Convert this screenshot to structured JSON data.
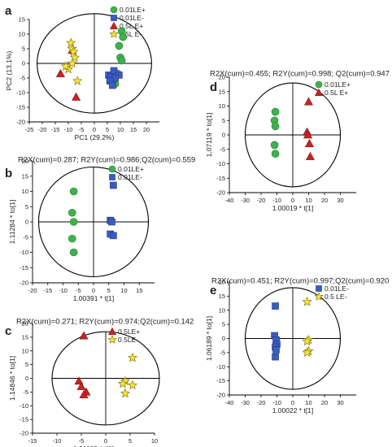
{
  "chart_data": [
    {
      "type": "scatter",
      "panel_letter": "a",
      "title": "",
      "xlabel": "PC1 (29.2%)",
      "ylabel": "PC2 (13.1%)",
      "xlim": [
        -25,
        25
      ],
      "ylim": [
        -20,
        15
      ],
      "xticks": [
        -25,
        -20,
        -15,
        -10,
        -5,
        0,
        5,
        10,
        15,
        20
      ],
      "yticks": [
        -20,
        -15,
        -10,
        -5,
        0,
        5,
        10,
        15
      ],
      "xtick_labels": [
        "-25",
        "-20",
        "-15",
        "-10",
        "-5",
        "0",
        "5",
        "10",
        "15",
        "20"
      ],
      "ytick_labels": [
        "-20",
        "-15",
        "-10",
        "-5",
        "0",
        "5",
        "10",
        "15"
      ],
      "ellipse": {
        "rx": 22,
        "ry": 17
      },
      "legend_position": "top-right",
      "series": [
        {
          "name": "0.01LE+",
          "marker": "circle",
          "color": "#3cb44b",
          "points": [
            [
              10.5,
              11
            ],
            [
              11,
              9
            ],
            [
              9.5,
              6
            ],
            [
              10,
              2
            ],
            [
              10.5,
              1
            ],
            [
              9,
              -3.5
            ],
            [
              8,
              -7
            ]
          ]
        },
        {
          "name": "0.01LE-",
          "marker": "square",
          "color": "#3b5bc4",
          "points": [
            [
              5.5,
              -4
            ],
            [
              6.5,
              -4.5
            ],
            [
              7.5,
              -2.5
            ],
            [
              9.5,
              -4
            ],
            [
              8,
              -5
            ],
            [
              6,
              -6
            ],
            [
              7,
              -7.5
            ]
          ]
        },
        {
          "name": "0.5L E+",
          "marker": "triangle",
          "color": "#cc2222",
          "points": [
            [
              -8.5,
              4.5
            ],
            [
              -13,
              -3.5
            ],
            [
              -7,
              -11.5
            ]
          ]
        },
        {
          "name": "0.5L E-",
          "marker": "star",
          "color": "#f5e43a",
          "points": [
            [
              -9,
              7
            ],
            [
              -8.5,
              5
            ],
            [
              -8,
              4
            ],
            [
              -7.5,
              2
            ],
            [
              -8.5,
              0
            ],
            [
              -10,
              -2
            ],
            [
              -11,
              -1
            ],
            [
              -6.5,
              -6
            ]
          ]
        }
      ]
    },
    {
      "type": "scatter",
      "panel_letter": "b",
      "title": "R2X(cum)=0.287; R2Y(cum)=0.986;Q2(cum)=0.559",
      "xlabel": "1.00391 * t[1]",
      "ylabel": "1.11284 * to[1]",
      "xlim": [
        -20,
        20
      ],
      "ylim": [
        -20,
        20
      ],
      "xticks": [
        -20,
        -15,
        -10,
        -5,
        0,
        5,
        10,
        15
      ],
      "yticks": [
        -20,
        -15,
        -10,
        -5,
        0,
        5,
        10,
        15,
        20
      ],
      "xtick_labels": [
        "-20",
        "-15",
        "-10",
        "-5",
        "0",
        "5",
        "10",
        "15"
      ],
      "ytick_labels": [
        "-20",
        "-15",
        "-10",
        "-5",
        "0",
        "5",
        "10",
        "15",
        "20"
      ],
      "ellipse": {
        "rx": 18,
        "ry": 18
      },
      "legend_position": "top-right",
      "series": [
        {
          "name": "0.01LE+",
          "marker": "circle",
          "color": "#3cb44b",
          "points": [
            [
              -6.5,
              10
            ],
            [
              -7,
              3
            ],
            [
              -6.5,
              0
            ],
            [
              -7,
              -5.5
            ],
            [
              -6.5,
              -10
            ]
          ]
        },
        {
          "name": "0.01LE-",
          "marker": "square",
          "color": "#3b5bc4",
          "points": [
            [
              6.5,
              12
            ],
            [
              5.5,
              0.5
            ],
            [
              6,
              0
            ],
            [
              5.5,
              -4
            ],
            [
              6.5,
              -4.5
            ]
          ]
        }
      ]
    },
    {
      "type": "scatter",
      "panel_letter": "c",
      "title": "R2X(cum)=0.271; R2Y(cum)=0.974;Q2(cum)=0.142",
      "xlabel": "1.01189 * t[1]",
      "ylabel": "1.14846 * to[1]",
      "xlim": [
        -15,
        10
      ],
      "ylim": [
        -20,
        20
      ],
      "xticks": [
        -15,
        -10,
        -5,
        0,
        5,
        10
      ],
      "yticks": [
        -20,
        -15,
        -10,
        -5,
        0,
        5,
        10,
        15,
        20
      ],
      "xtick_labels": [
        "-15",
        "-10",
        "-5",
        "0",
        "5",
        "10"
      ],
      "ytick_labels": [
        "-20",
        "-15",
        "-10",
        "-5",
        "0",
        "5",
        "10",
        "15",
        "20"
      ],
      "ellipse": {
        "rx": 11,
        "ry": 17
      },
      "legend_position": "top-right",
      "series": [
        {
          "name": "0.5LE+",
          "marker": "triangle",
          "color": "#cc2222",
          "points": [
            [
              -4.5,
              15.5
            ],
            [
              -5.5,
              -1
            ],
            [
              -5,
              -3
            ],
            [
              -4,
              -5
            ],
            [
              -4.5,
              -6
            ]
          ]
        },
        {
          "name": "0.5LE-",
          "marker": "star",
          "color": "#f5e43a",
          "points": [
            [
              5.5,
              7.5
            ],
            [
              4,
              -1
            ],
            [
              3.5,
              -2
            ],
            [
              5.5,
              -2.5
            ],
            [
              4,
              -5.5
            ]
          ]
        }
      ]
    },
    {
      "type": "scatter",
      "panel_letter": "d",
      "title": "R2X(cum)=0.455; R2Y(cum)=0.998; Q2(cum)=0.947",
      "xlabel": "1.00019 * t[1]",
      "ylabel": "1.07119 * to[1]",
      "xlim": [
        -40,
        40
      ],
      "ylim": [
        -20,
        20
      ],
      "xticks": [
        -40,
        -30,
        -20,
        -10,
        0,
        10,
        20,
        30
      ],
      "yticks": [
        -20,
        -15,
        -10,
        -5,
        0,
        5,
        10,
        15,
        20
      ],
      "xtick_labels": [
        "-40",
        "-30",
        "-20",
        "-10",
        "0",
        "10",
        "20",
        "30"
      ],
      "ytick_labels": [
        "-20",
        "-15",
        "-10",
        "-5",
        "0",
        "5",
        "10",
        "15",
        "20"
      ],
      "ellipse": {
        "rx": 30,
        "ry": 18
      },
      "legend_position": "top-right",
      "series": [
        {
          "name": "0.01LE+",
          "marker": "circle",
          "color": "#3cb44b",
          "points": [
            [
              -11,
              8
            ],
            [
              -11.5,
              5
            ],
            [
              -11,
              3
            ],
            [
              -11.5,
              -3.5
            ],
            [
              -11,
              -6.5
            ]
          ]
        },
        {
          "name": "0.5L E+",
          "marker": "triangle",
          "color": "#cc2222",
          "points": [
            [
              10,
              11.5
            ],
            [
              9,
              1
            ],
            [
              9.5,
              0
            ],
            [
              10.5,
              -3
            ],
            [
              11,
              -7.5
            ]
          ]
        }
      ]
    },
    {
      "type": "scatter",
      "panel_letter": "e",
      "title": "R2X(cum)=0.451; R2Y(cum)=0.997;Q2(cum)=0.920",
      "xlabel": "1.00022 * t[1]",
      "ylabel": "1.06189 * to[1]",
      "xlim": [
        -40,
        40
      ],
      "ylim": [
        -20,
        20
      ],
      "xticks": [
        -40,
        -30,
        -20,
        -10,
        0,
        10,
        20,
        30
      ],
      "yticks": [
        -20,
        -15,
        -10,
        -5,
        0,
        5,
        10,
        15,
        20
      ],
      "xtick_labels": [
        "-40",
        "-30",
        "-20",
        "-10",
        "0",
        "10",
        "20",
        "30"
      ],
      "ytick_labels": [
        "-20",
        "-15",
        "-10",
        "-5",
        "0",
        "5",
        "10",
        "15",
        "20"
      ],
      "ellipse": {
        "rx": 30,
        "ry": 18
      },
      "legend_position": "top-right",
      "series": [
        {
          "name": "0.01LE-",
          "marker": "square",
          "color": "#3b5bc4",
          "points": [
            [
              -11,
              11.5
            ],
            [
              -11.5,
              1
            ],
            [
              -10.5,
              -0.5
            ],
            [
              -10,
              -2
            ],
            [
              -11,
              -3
            ],
            [
              -10.5,
              -4
            ],
            [
              -11,
              -6.5
            ]
          ]
        },
        {
          "name": "0.5 LE-",
          "marker": "star",
          "color": "#f5e43a",
          "points": [
            [
              9,
              13
            ],
            [
              10,
              -0.5
            ],
            [
              9,
              -1
            ],
            [
              10,
              -4.5
            ],
            [
              9,
              -5
            ]
          ]
        }
      ]
    }
  ]
}
